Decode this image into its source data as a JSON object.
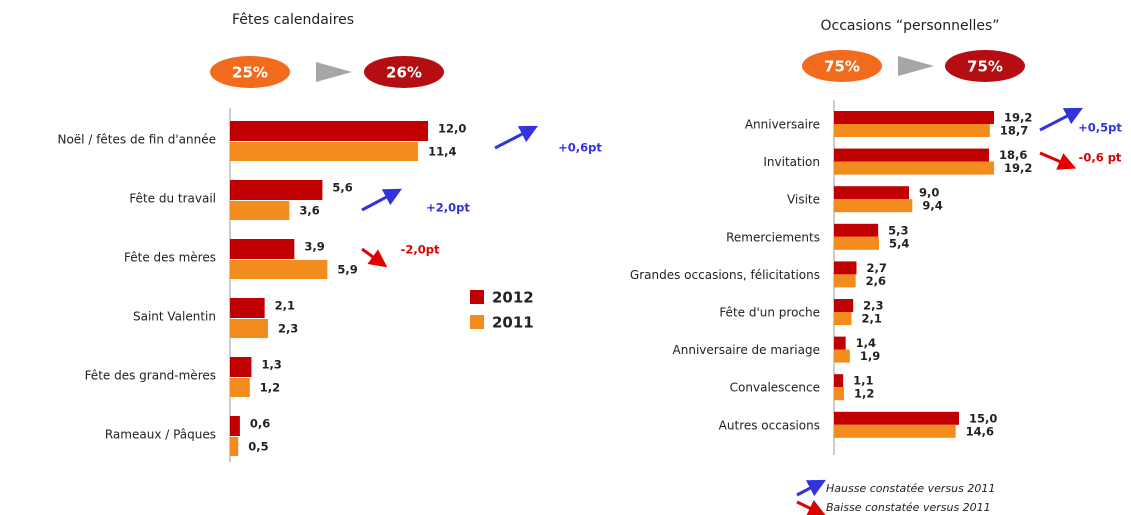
{
  "chart_data": [
    {
      "type": "bar",
      "orientation": "horizontal",
      "title": "Fêtes calendaires",
      "shares": {
        "values": [
          25,
          26
        ],
        "value_labels": [
          "25%",
          "26%"
        ]
      },
      "categories": [
        "Noël / fêtes de fin d'année",
        "Fête du travail",
        "Fête des mères",
        "Saint Valentin",
        "Fête des grand-mères",
        "Rameaux / Pâques"
      ],
      "series": [
        {
          "name": "2012",
          "color": "#c00000",
          "values": [
            12.0,
            5.6,
            3.9,
            2.1,
            1.3,
            0.6
          ],
          "value_labels": [
            "12,0",
            "5,6",
            "3,9",
            "2,1",
            "1,3",
            "0,6"
          ]
        },
        {
          "name": "2011",
          "color": "#f28c1e",
          "values": [
            11.4,
            3.6,
            5.9,
            2.3,
            1.2,
            0.5
          ],
          "value_labels": [
            "11,4",
            "3,6",
            "5,9",
            "2,3",
            "1,2",
            "0,5"
          ]
        }
      ],
      "xlim": [
        0,
        12
      ],
      "legend": true,
      "annotations": [
        {
          "text": "+0,6pt",
          "color": "#3333dd",
          "direction": "up"
        },
        {
          "text": "+2,0pt",
          "color": "#3333dd",
          "direction": "up"
        },
        {
          "text": "-2,0pt",
          "color": "#e00000",
          "direction": "down"
        }
      ]
    },
    {
      "type": "bar",
      "orientation": "horizontal",
      "title": "Occasions “personnelles”",
      "shares": {
        "values": [
          75,
          75
        ],
        "value_labels": [
          "75%",
          "75%"
        ]
      },
      "categories": [
        "Anniversaire",
        "Invitation",
        "Visite",
        "Remerciements",
        "Grandes occasions, félicitations",
        "Fête d'un proche",
        "Anniversaire de mariage",
        "Convalescence",
        "Autres occasions"
      ],
      "series": [
        {
          "color": "#c00000",
          "values": [
            19.2,
            18.6,
            9.0,
            5.3,
            2.7,
            2.3,
            1.4,
            1.1,
            15.0
          ],
          "value_labels": [
            "19,2",
            "18,6",
            "9,0",
            "5,3",
            "2,7",
            "2,3",
            "1,4",
            "1,1",
            "15,0"
          ]
        },
        {
          "color": "#f28c1e",
          "values": [
            18.7,
            19.2,
            9.4,
            5.4,
            2.6,
            2.1,
            1.9,
            1.2,
            14.6
          ],
          "value_labels": [
            "18,7",
            "19,2",
            "9,4",
            "5,4",
            "2,6",
            "2,1",
            "1,9",
            "1,2",
            "14,6"
          ]
        }
      ],
      "xlim": [
        0,
        19.2
      ],
      "legend": false,
      "annotations": [
        {
          "text": "+0,5pt",
          "color": "#3333dd",
          "direction": "up"
        },
        {
          "text": "-0,6 pt",
          "color": "#e00000",
          "direction": "down"
        }
      ]
    }
  ],
  "footer": [
    {
      "text": "Hausse constatée versus 2011",
      "color": "#3333dd",
      "direction": "up"
    },
    {
      "text": "Baisse constatée versus 2011",
      "color": "#e00000",
      "direction": "down"
    }
  ]
}
